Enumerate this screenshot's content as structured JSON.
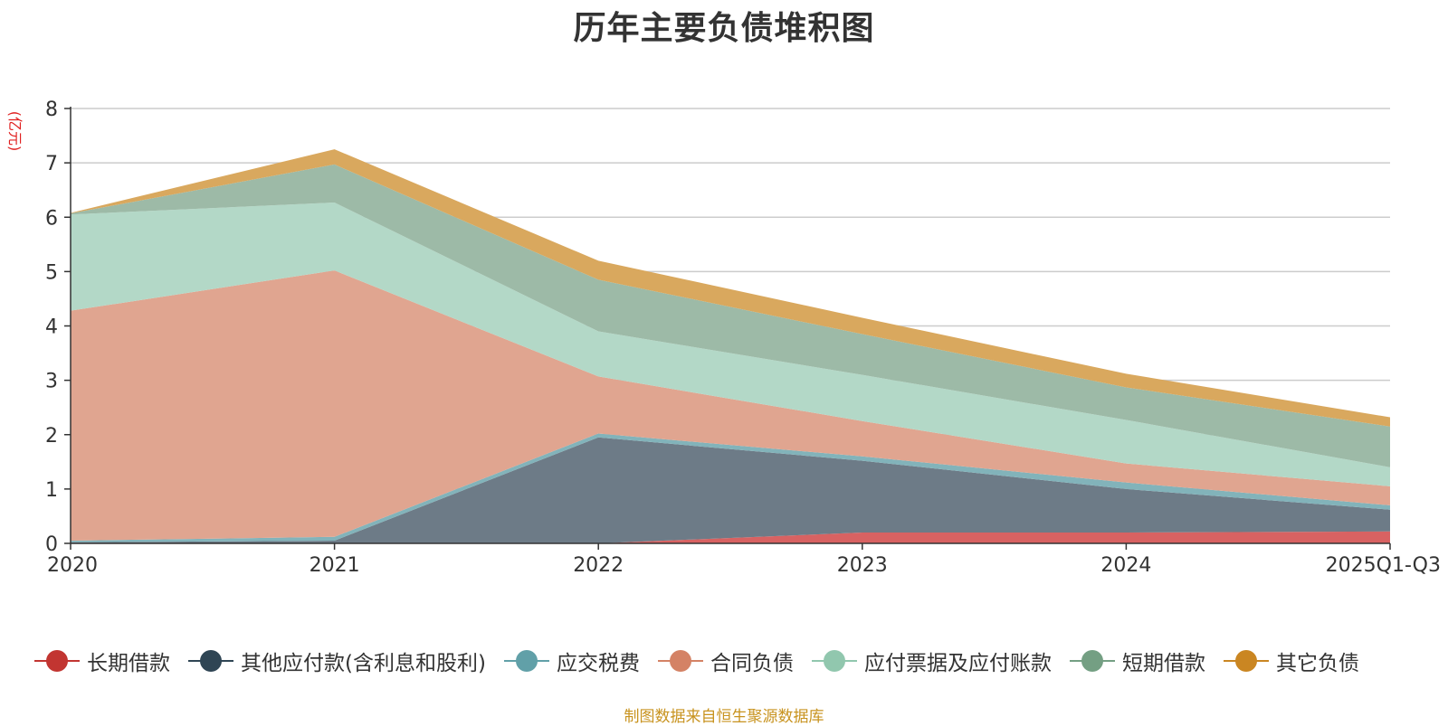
{
  "title": "历年主要负债堆积图",
  "source_note": "制图数据来自恒生聚源数据库",
  "chart_data": {
    "type": "area",
    "stacked": true,
    "title": "历年主要负债堆积图",
    "ylabel": "(亿元)",
    "xlabel": "",
    "ylim": [
      0,
      8
    ],
    "yticks": [
      "0",
      "1",
      "2",
      "3",
      "4",
      "5",
      "6",
      "7",
      "8"
    ],
    "categories": [
      "2020",
      "2021",
      "2022",
      "2023",
      "2024",
      "2025Q1-Q3"
    ],
    "grid": true,
    "legend_position": "bottom",
    "series": [
      {
        "name": "长期借款",
        "color": "#c23531",
        "fill": "#d86262",
        "values": [
          0,
          0,
          0,
          0.2,
          0.2,
          0.22
        ]
      },
      {
        "name": "其他应付款(含利息和股利)",
        "color": "#2f4554",
        "fill": "#6d7b87",
        "values": [
          0.02,
          0.05,
          1.95,
          1.32,
          0.8,
          0.4
        ]
      },
      {
        "name": "应交税费",
        "color": "#61a0a8",
        "fill": "#82b3ba",
        "values": [
          0.03,
          0.07,
          0.07,
          0.08,
          0.12,
          0.08
        ]
      },
      {
        "name": "合同负债",
        "color": "#d48265",
        "fill": "#e0a590",
        "values": [
          4.23,
          4.9,
          1.05,
          0.65,
          0.35,
          0.35
        ]
      },
      {
        "name": "应付票据及应付账款",
        "color": "#91c7ae",
        "fill": "#b3d8c7",
        "values": [
          1.77,
          1.25,
          0.83,
          0.85,
          0.8,
          0.35
        ]
      },
      {
        "name": "短期借款",
        "color": "#749f83",
        "fill": "#9dbaa7",
        "values": [
          0.02,
          0.7,
          0.95,
          0.75,
          0.6,
          0.75
        ]
      },
      {
        "name": "其它负债",
        "color": "#ca8622",
        "fill": "#d9a85e",
        "values": [
          0.01,
          0.28,
          0.35,
          0.3,
          0.25,
          0.17
        ]
      }
    ]
  }
}
